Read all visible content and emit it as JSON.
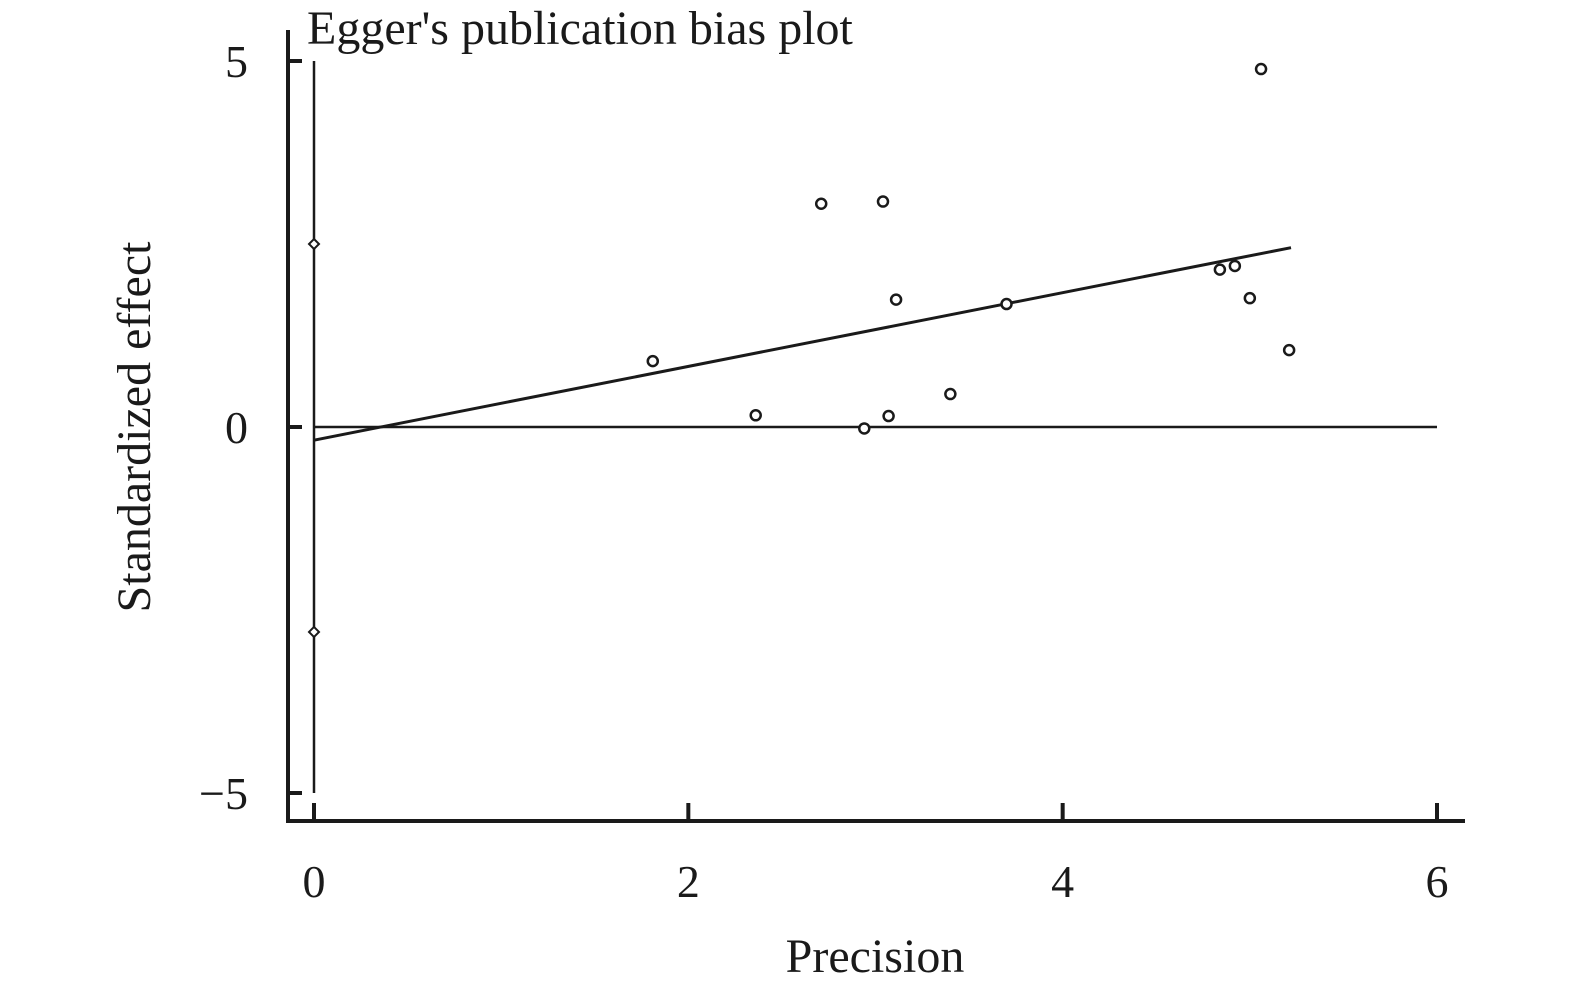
{
  "chart_data": {
    "type": "scatter",
    "title": "Egger's publication bias plot",
    "xlabel": "Precision",
    "ylabel": "Standardized effect",
    "xlim": [
      -0.15,
      6.15
    ],
    "ylim": [
      -5.4,
      5.3
    ],
    "xticks": [
      0,
      2,
      4,
      6
    ],
    "xtick_labels": [
      "0",
      "2",
      "4",
      "6"
    ],
    "yticks": [
      5,
      0,
      -5
    ],
    "ytick_labels": [
      "5",
      "0",
      "−5"
    ],
    "grid": false,
    "legend": "none",
    "points": [
      {
        "x": 1.81,
        "y": 0.9
      },
      {
        "x": 2.36,
        "y": 0.16
      },
      {
        "x": 2.71,
        "y": 3.05
      },
      {
        "x": 2.94,
        "y": -0.02
      },
      {
        "x": 3.04,
        "y": 3.08
      },
      {
        "x": 3.07,
        "y": 0.15
      },
      {
        "x": 3.11,
        "y": 1.74
      },
      {
        "x": 3.4,
        "y": 0.45
      },
      {
        "x": 3.7,
        "y": 1.68
      },
      {
        "x": 4.84,
        "y": 2.15
      },
      {
        "x": 4.92,
        "y": 2.2
      },
      {
        "x": 5.0,
        "y": 1.76
      },
      {
        "x": 5.06,
        "y": 4.89
      },
      {
        "x": 5.21,
        "y": 1.05
      }
    ],
    "regression_line": {
      "x": [
        0,
        5.22
      ],
      "y": [
        -0.18,
        2.45
      ]
    },
    "reference_line_y": 0,
    "intercept_ci": {
      "x": 0,
      "y": [
        2.5,
        -2.8
      ]
    },
    "colors": {
      "ink": "#1a1a1a",
      "background": "#ffffff"
    }
  }
}
